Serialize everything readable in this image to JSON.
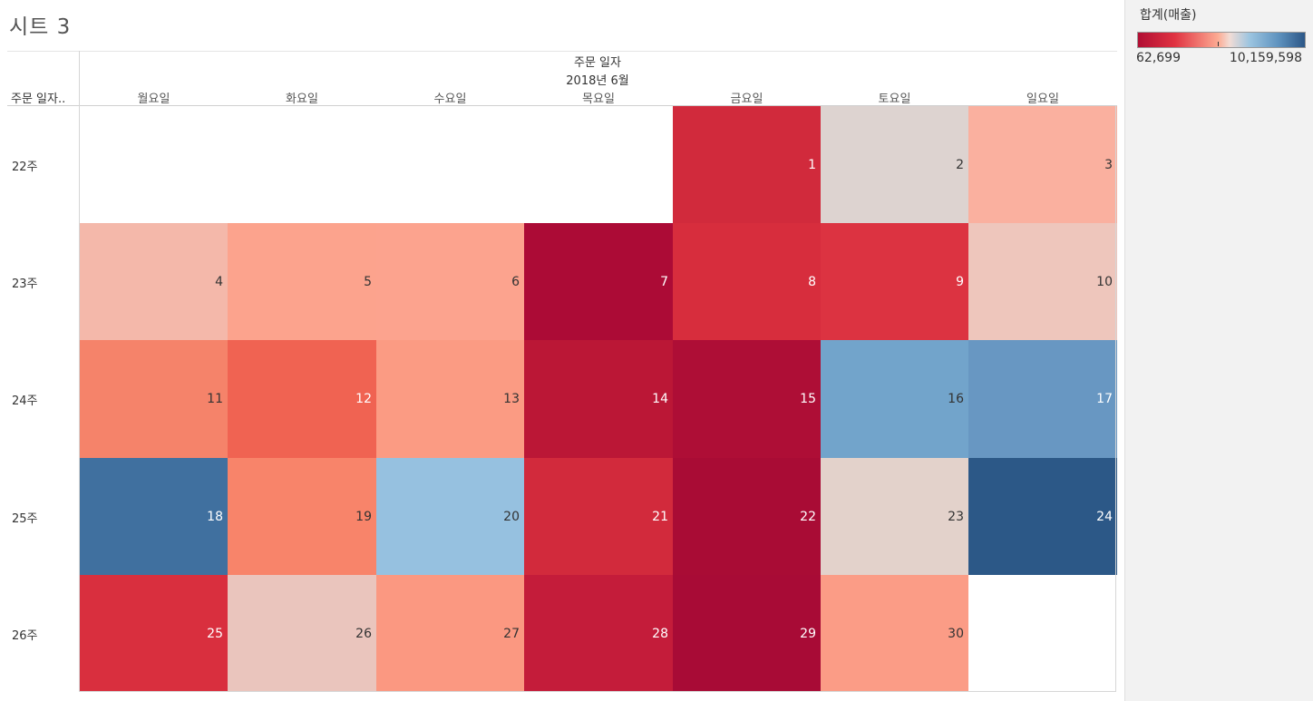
{
  "sheet_title": "시트 3",
  "columns_header": {
    "field": "주문 일자",
    "month": "2018년 6월"
  },
  "rows_header": {
    "field": "주문 일자.."
  },
  "legend": {
    "title": "합계(매출)",
    "min_label": "62,699",
    "max_label": "10,159,598",
    "palette": [
      "#b10e33",
      "#e03241",
      "#fcab93",
      "#f1dcd5",
      "#9bc4e0",
      "#5f93bf",
      "#2c5787"
    ]
  },
  "chart_data": {
    "type": "heatmap",
    "title": "",
    "x_field": "주문 일자",
    "y_field": "주문 일자..",
    "weekdays": [
      "월요일",
      "화요일",
      "수요일",
      "목요일",
      "금요일",
      "토요일",
      "일요일"
    ],
    "weeks": [
      "22주",
      "23주",
      "24주",
      "25주",
      "26주"
    ],
    "color_measure": "합계(매출)",
    "color_range": [
      62699,
      10159598
    ],
    "cells": [
      {
        "week": "22주",
        "weekday": "금요일",
        "day": "1",
        "color": "#d12a3c",
        "text_color": "#ffffff"
      },
      {
        "week": "22주",
        "weekday": "토요일",
        "day": "2",
        "color": "#ddd3d0",
        "text_color": "#333333"
      },
      {
        "week": "22주",
        "weekday": "일요일",
        "day": "3",
        "color": "#fab09f",
        "text_color": "#333333"
      },
      {
        "week": "23주",
        "weekday": "월요일",
        "day": "4",
        "color": "#f4b8aa",
        "text_color": "#333333"
      },
      {
        "week": "23주",
        "weekday": "화요일",
        "day": "5",
        "color": "#fca38d",
        "text_color": "#333333"
      },
      {
        "week": "23주",
        "weekday": "수요일",
        "day": "6",
        "color": "#fca38e",
        "text_color": "#333333"
      },
      {
        "week": "23주",
        "weekday": "목요일",
        "day": "7",
        "color": "#ac0b36",
        "text_color": "#ffffff"
      },
      {
        "week": "23주",
        "weekday": "금요일",
        "day": "8",
        "color": "#d72d3d",
        "text_color": "#ffffff"
      },
      {
        "week": "23주",
        "weekday": "토요일",
        "day": "9",
        "color": "#dc3341",
        "text_color": "#ffffff"
      },
      {
        "week": "23주",
        "weekday": "일요일",
        "day": "10",
        "color": "#eec6bc",
        "text_color": "#333333"
      },
      {
        "week": "24주",
        "weekday": "월요일",
        "day": "11",
        "color": "#f5836a",
        "text_color": "#333333"
      },
      {
        "week": "24주",
        "weekday": "화요일",
        "day": "12",
        "color": "#f06352",
        "text_color": "#ffffff"
      },
      {
        "week": "24주",
        "weekday": "수요일",
        "day": "13",
        "color": "#fb9b83",
        "text_color": "#333333"
      },
      {
        "week": "24주",
        "weekday": "목요일",
        "day": "14",
        "color": "#bb1736",
        "text_color": "#ffffff"
      },
      {
        "week": "24주",
        "weekday": "금요일",
        "day": "15",
        "color": "#ae0e36",
        "text_color": "#ffffff"
      },
      {
        "week": "24주",
        "weekday": "토요일",
        "day": "16",
        "color": "#72a4cb",
        "text_color": "#333333"
      },
      {
        "week": "24주",
        "weekday": "일요일",
        "day": "17",
        "color": "#6897c2",
        "text_color": "#ffffff"
      },
      {
        "week": "25주",
        "weekday": "월요일",
        "day": "18",
        "color": "#40709f",
        "text_color": "#ffffff"
      },
      {
        "week": "25주",
        "weekday": "화요일",
        "day": "19",
        "color": "#f8846a",
        "text_color": "#333333"
      },
      {
        "week": "25주",
        "weekday": "수요일",
        "day": "20",
        "color": "#96c1e0",
        "text_color": "#333333"
      },
      {
        "week": "25주",
        "weekday": "목요일",
        "day": "21",
        "color": "#d22a3c",
        "text_color": "#ffffff"
      },
      {
        "week": "25주",
        "weekday": "금요일",
        "day": "22",
        "color": "#a90c35",
        "text_color": "#ffffff"
      },
      {
        "week": "25주",
        "weekday": "토요일",
        "day": "23",
        "color": "#e3d2cb",
        "text_color": "#333333"
      },
      {
        "week": "25주",
        "weekday": "일요일",
        "day": "24",
        "color": "#2c5887",
        "text_color": "#ffffff"
      },
      {
        "week": "26주",
        "weekday": "월요일",
        "day": "25",
        "color": "#d92f3e",
        "text_color": "#ffffff"
      },
      {
        "week": "26주",
        "weekday": "화요일",
        "day": "26",
        "color": "#eac5bd",
        "text_color": "#333333"
      },
      {
        "week": "26주",
        "weekday": "수요일",
        "day": "27",
        "color": "#fb9881",
        "text_color": "#333333"
      },
      {
        "week": "26주",
        "weekday": "목요일",
        "day": "28",
        "color": "#c41c3a",
        "text_color": "#ffffff"
      },
      {
        "week": "26주",
        "weekday": "금요일",
        "day": "29",
        "color": "#a80b36",
        "text_color": "#ffffff"
      },
      {
        "week": "26주",
        "weekday": "토요일",
        "day": "30",
        "color": "#fb9c86",
        "text_color": "#333333"
      }
    ]
  }
}
